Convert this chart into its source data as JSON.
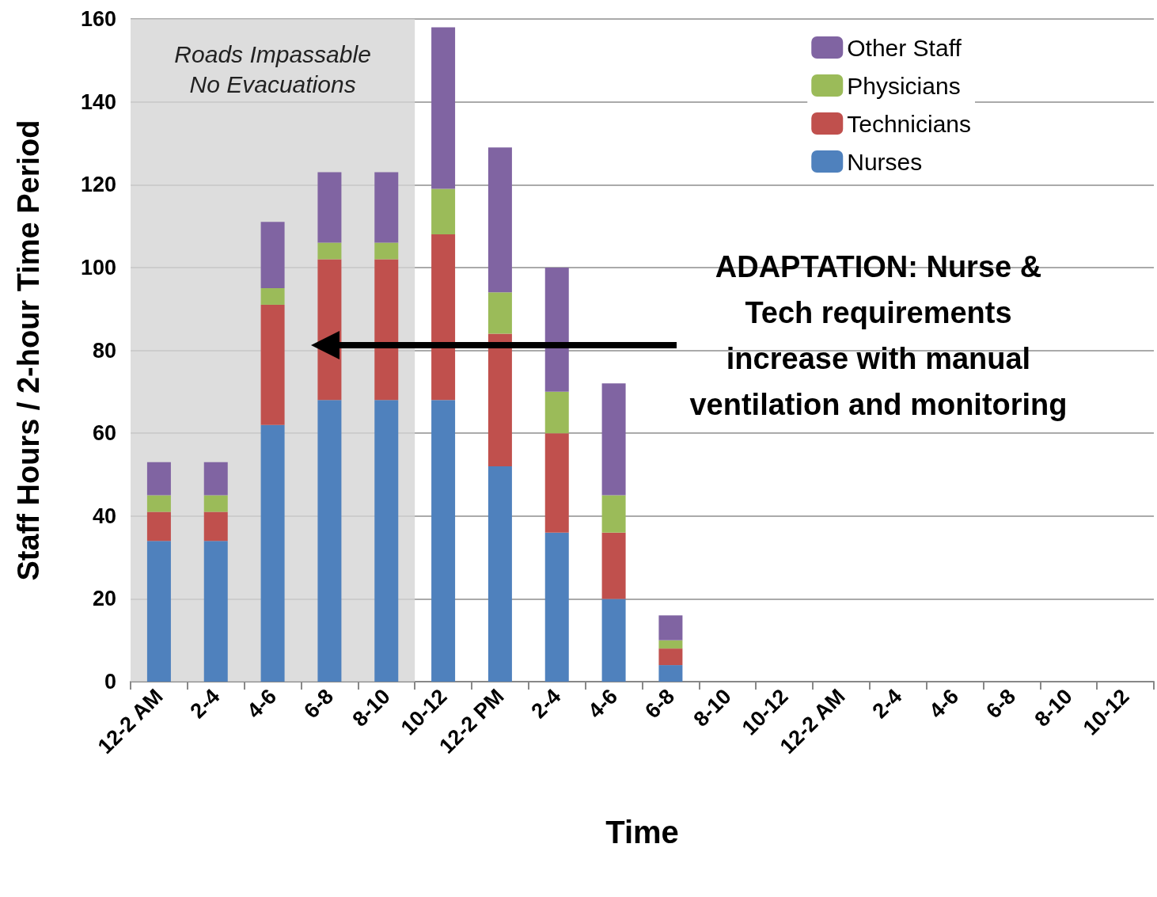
{
  "chart_data": {
    "type": "bar",
    "stacked": true,
    "categories": [
      "12-2 AM",
      "2-4",
      "4-6",
      "6-8",
      "8-10",
      "10-12",
      "12-2 PM",
      "2-4",
      "4-6",
      "6-8",
      "8-10",
      "10-12",
      "12-2 AM",
      "2-4",
      "4-6",
      "6-8",
      "8-10",
      "10-12"
    ],
    "series": [
      {
        "name": "Nurses",
        "color": "#4f81bd",
        "values": [
          34,
          34,
          62,
          68,
          68,
          68,
          52,
          36,
          20,
          4,
          null,
          null,
          null,
          null,
          null,
          null,
          null,
          null
        ]
      },
      {
        "name": "Technicians",
        "color": "#c0504d",
        "values": [
          7,
          7,
          29,
          34,
          34,
          40,
          32,
          24,
          16,
          4,
          null,
          null,
          null,
          null,
          null,
          null,
          null,
          null
        ]
      },
      {
        "name": "Physicians",
        "color": "#9bbb59",
        "values": [
          4,
          4,
          4,
          4,
          4,
          11,
          10,
          10,
          9,
          2,
          null,
          null,
          null,
          null,
          null,
          null,
          null,
          null
        ]
      },
      {
        "name": "Other Staff",
        "color": "#8064a2",
        "values": [
          8,
          8,
          16,
          17,
          17,
          39,
          35,
          30,
          27,
          6,
          null,
          null,
          null,
          null,
          null,
          null,
          null,
          null
        ]
      }
    ],
    "xlabel": "Time",
    "ylabel": "Staff Hours / 2-hour Time Period",
    "ylim": [
      0,
      160
    ],
    "yticks": [
      0,
      20,
      40,
      60,
      80,
      100,
      120,
      140,
      160
    ],
    "grid": "y",
    "legend": "top right",
    "bands": [
      {
        "axis": "x",
        "from": "12-2 AM",
        "to": "8-10",
        "label": "Roads Impassable\nNo Evacuations",
        "color": "#d4d4d4"
      }
    ],
    "annotations": [
      "ADAPTATION: Nurse &\nTech requirements\nincrease with manual\nventilation and monitoring"
    ]
  }
}
